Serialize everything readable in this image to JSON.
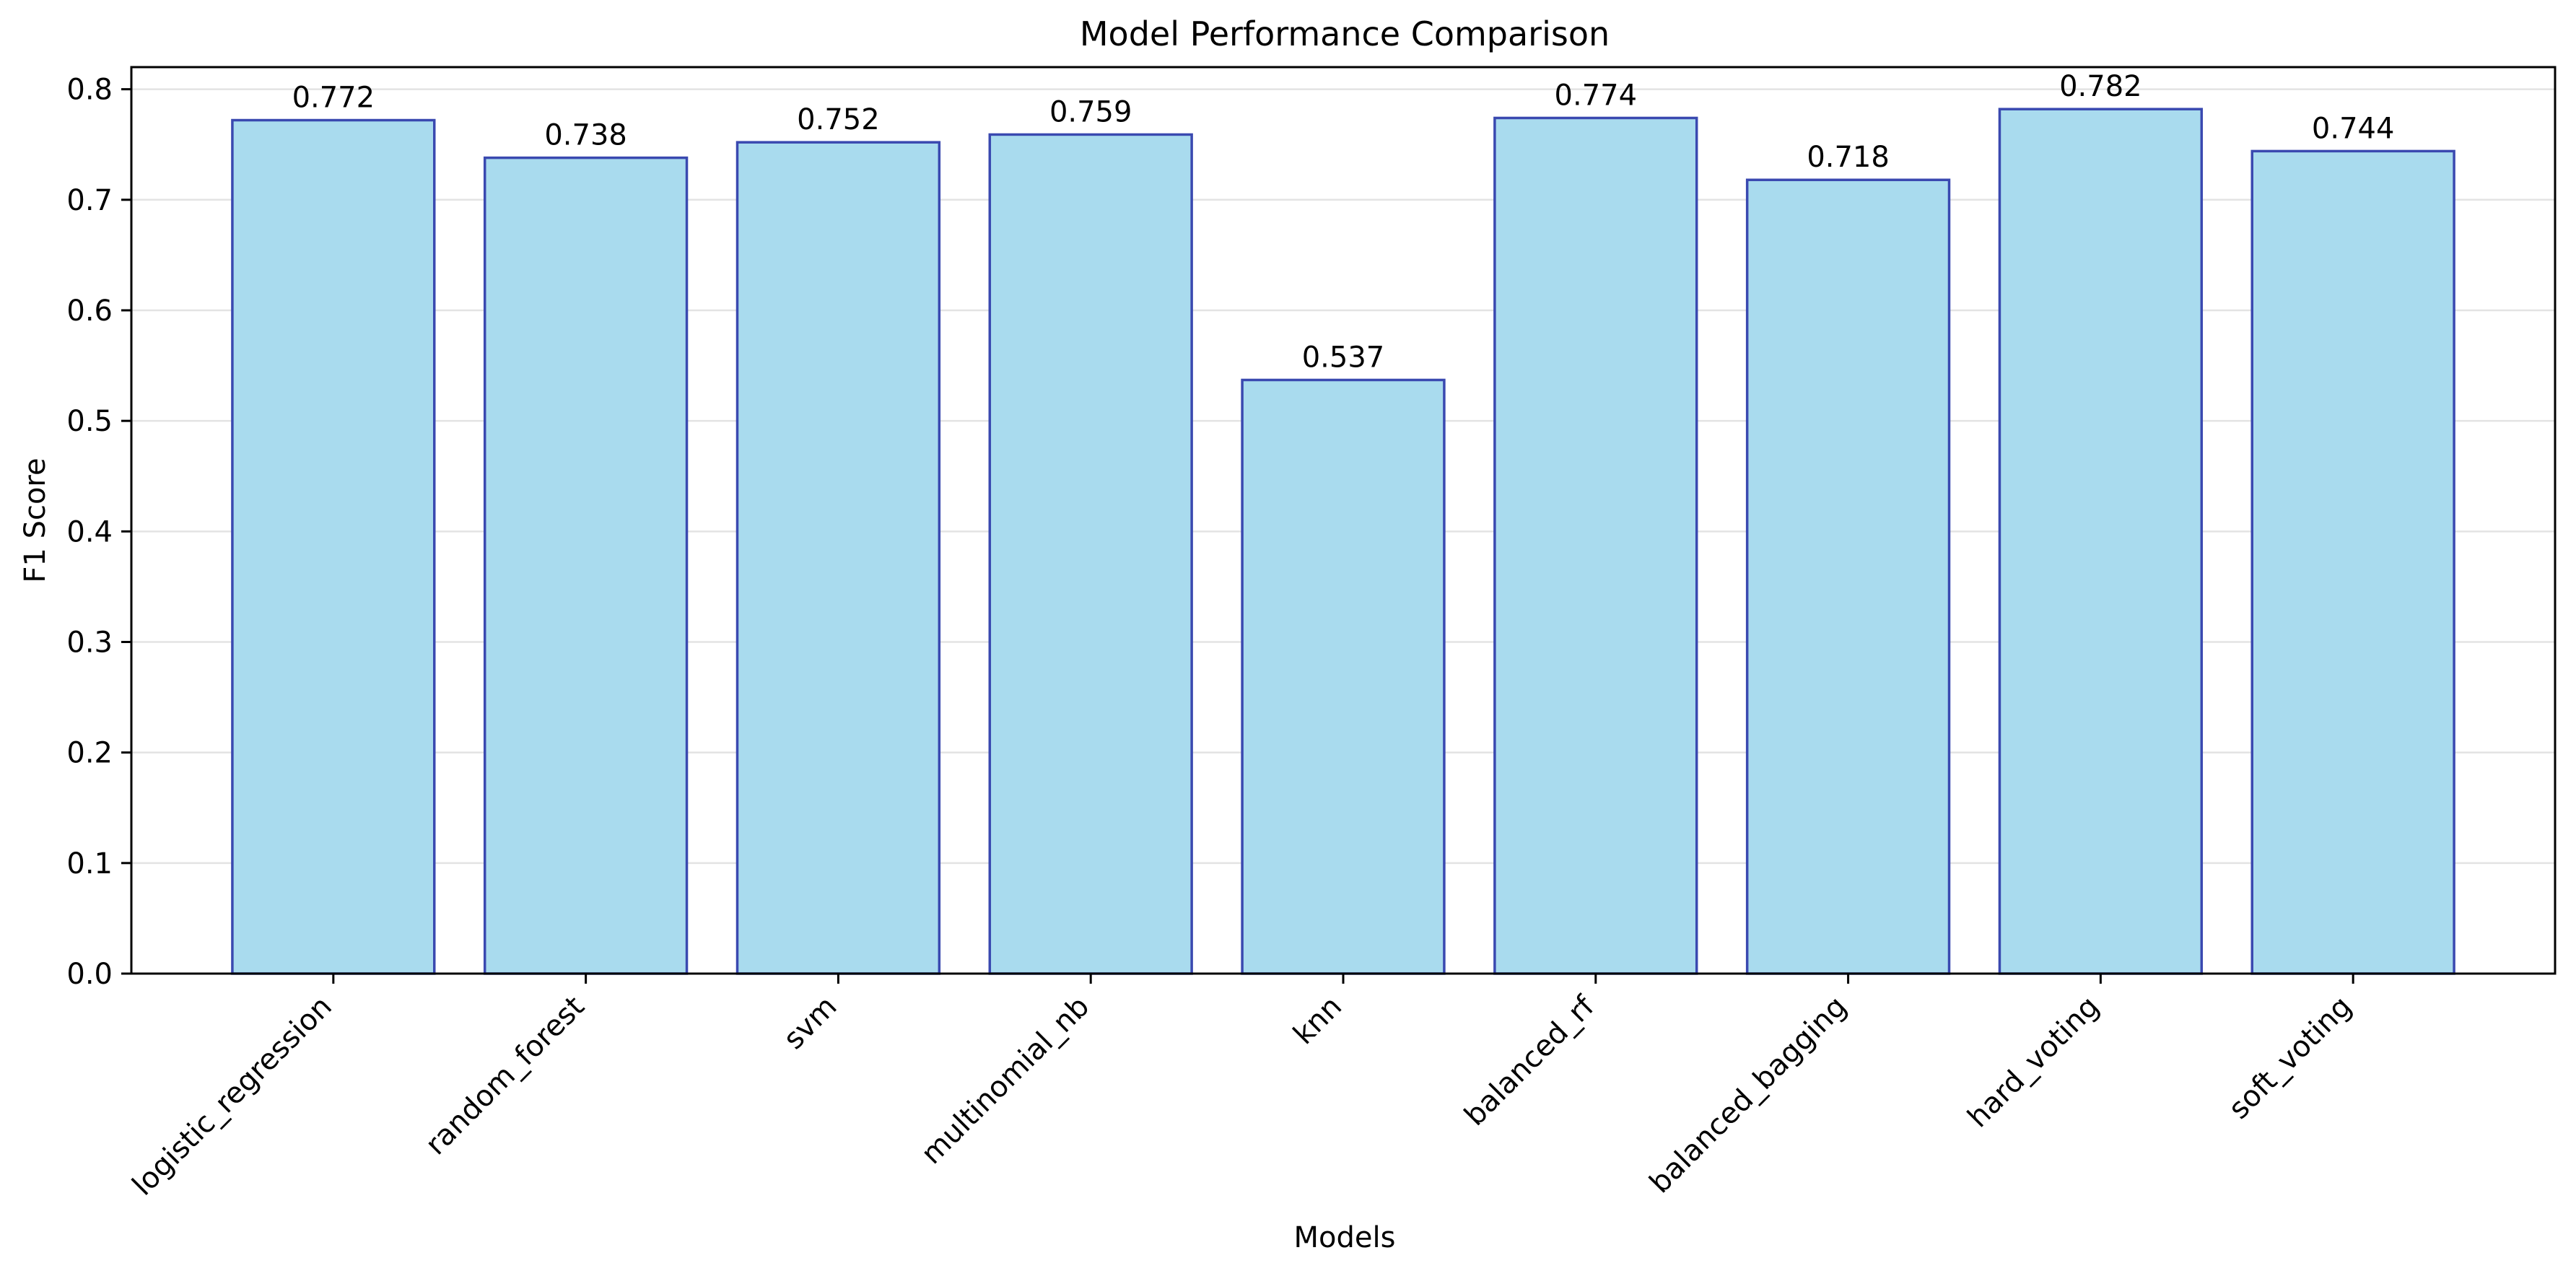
{
  "chart_data": {
    "type": "bar",
    "title": "Model Performance Comparison",
    "xlabel": "Models",
    "ylabel": "F1 Score",
    "categories": [
      "logistic_regression",
      "random_forest",
      "svm",
      "multinomial_nb",
      "knn",
      "balanced_rf",
      "balanced_bagging",
      "hard_voting",
      "soft_voting"
    ],
    "values": [
      0.772,
      0.738,
      0.752,
      0.759,
      0.537,
      0.774,
      0.718,
      0.782,
      0.744
    ],
    "data_labels": [
      "0.772",
      "0.738",
      "0.752",
      "0.759",
      "0.537",
      "0.774",
      "0.718",
      "0.782",
      "0.744"
    ],
    "ylim": [
      0,
      0.82
    ],
    "yticks": [
      0.0,
      0.1,
      0.2,
      0.3,
      0.4,
      0.5,
      0.6,
      0.7,
      0.8
    ],
    "ytick_labels": [
      "0.0",
      "0.1",
      "0.2",
      "0.3",
      "0.4",
      "0.5",
      "0.6",
      "0.7",
      "0.8"
    ],
    "grid": "horizontal",
    "legend": "none",
    "colors": {
      "bar_fill": "#a9dbee",
      "bar_edge": "#3a49b0",
      "grid": "#e3e3e3",
      "axis": "#000000",
      "text": "#000000"
    }
  }
}
